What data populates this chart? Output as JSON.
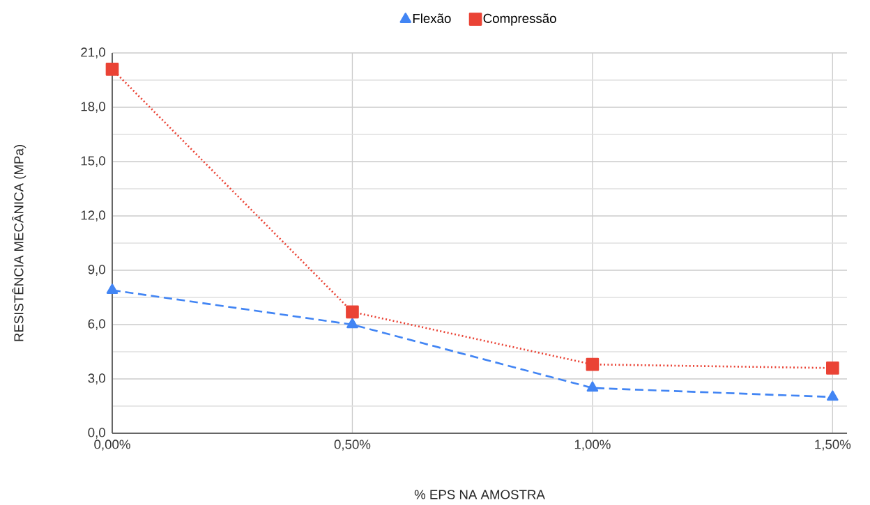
{
  "chart_data": {
    "type": "line",
    "xlabel": "% EPS NA AMOSTRA",
    "ylabel": "RESISTÊNCIA MECÂNICA (MPa)",
    "x": [
      0,
      0.5,
      1,
      1.5
    ],
    "series": [
      {
        "name": "Flexão",
        "color": "#4285f4",
        "values": [
          7.9,
          6.0,
          2.5,
          2.0
        ],
        "marker": "triangle",
        "line_style": "dashed"
      },
      {
        "name": "Compressão",
        "color": "#ea4335",
        "values": [
          20.1,
          6.7,
          3.8,
          3.6
        ],
        "marker": "square",
        "line_style": "dotted"
      }
    ],
    "xlim": [
      0,
      1.53
    ],
    "ylim": [
      0,
      21
    ],
    "xticks": [
      {
        "value": 0,
        "label": "0,00%"
      },
      {
        "value": 0.5,
        "label": "0,50%"
      },
      {
        "value": 1,
        "label": "1,00%"
      },
      {
        "value": 1.5,
        "label": "1,50%"
      }
    ],
    "yticks": [
      {
        "value": 0,
        "label": "0,0"
      },
      {
        "value": 3,
        "label": "3,0"
      },
      {
        "value": 6,
        "label": "6,0"
      },
      {
        "value": 9,
        "label": "9,0"
      },
      {
        "value": 12,
        "label": "12,0"
      },
      {
        "value": 15,
        "label": "15,0"
      },
      {
        "value": 18,
        "label": "18,0"
      },
      {
        "value": 21,
        "label": "21,0"
      }
    ],
    "grid": true,
    "legend": "top"
  }
}
